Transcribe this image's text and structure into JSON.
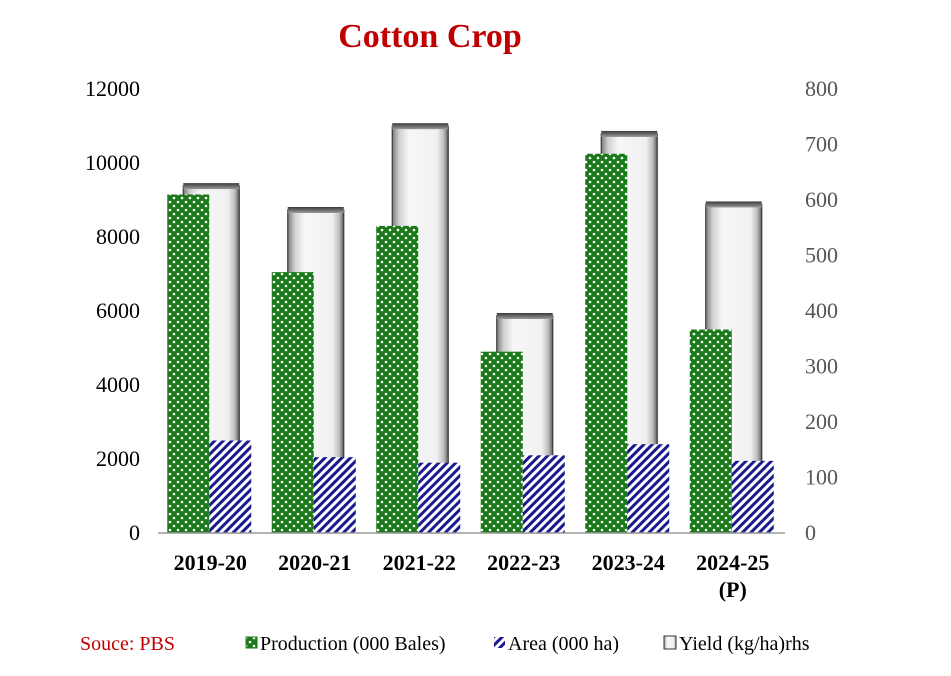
{
  "chart_data": {
    "type": "bar",
    "title": "Cotton Crop",
    "categories": [
      "2019-20",
      "2020-21",
      "2021-22",
      "2022-23",
      "2023-24",
      "2024-25 (P)"
    ],
    "category_lines": [
      [
        "2019-20"
      ],
      [
        "2020-21"
      ],
      [
        "2021-22"
      ],
      [
        "2022-23"
      ],
      [
        "2023-24"
      ],
      [
        "2024-25",
        "(P)"
      ]
    ],
    "series": [
      {
        "name": "Production (000 Bales)",
        "axis": "left",
        "color": "#1a7a1a",
        "pattern": "dots",
        "values": [
          9150,
          7050,
          8300,
          4900,
          10250,
          5500
        ]
      },
      {
        "name": "Area (000 ha)",
        "axis": "left",
        "color": "#1a1a8c",
        "pattern": "diagonal-stripes",
        "values": [
          2500,
          2050,
          1900,
          2100,
          2400,
          1950
        ]
      },
      {
        "name": "Yield (kg/ha)rhs",
        "axis": "right",
        "color": "#f2f2f2",
        "pattern": "cylinder",
        "values": [
          625,
          582,
          733,
          391,
          719,
          592
        ]
      }
    ],
    "y_left": {
      "min": 0,
      "max": 12000,
      "ticks": [
        0,
        2000,
        4000,
        6000,
        8000,
        10000,
        12000
      ]
    },
    "y_right": {
      "min": 0,
      "max": 800,
      "ticks": [
        0,
        100,
        200,
        300,
        400,
        500,
        600,
        700,
        800
      ]
    },
    "legend_placement": "bottom",
    "grid": false
  },
  "source": "Souce: PBS",
  "legend": {
    "production": "Production (000 Bales)",
    "area": "Area (000 ha)",
    "yield": "Yield (kg/ha)rhs"
  }
}
